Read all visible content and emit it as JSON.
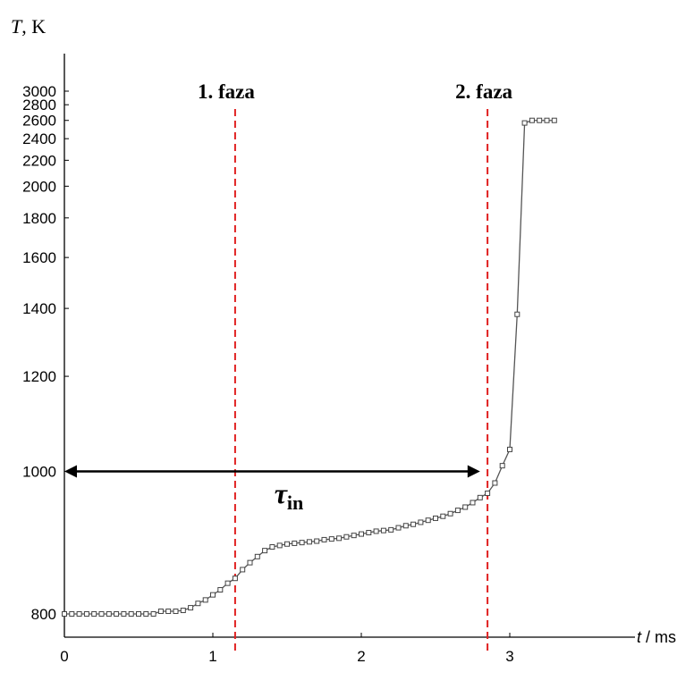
{
  "chart_data": {
    "type": "line",
    "xlabel_var": "t",
    "xlabel_unit": " / ms",
    "ylabel_var": "T",
    "ylabel_unit": ", K",
    "xlim": [
      0,
      3.7
    ],
    "x_ticks": [
      0,
      1,
      2,
      3
    ],
    "y_ticks": [
      800,
      1000,
      1200,
      1400,
      1600,
      1800,
      2000,
      2200,
      2400,
      2600,
      2800,
      3000
    ],
    "y_scale": "reciprocal",
    "grid": false,
    "series": [
      {
        "marker": "square",
        "color": "#555555",
        "x": [
          0.0,
          0.05,
          0.1,
          0.15,
          0.2,
          0.25,
          0.3,
          0.35,
          0.4,
          0.45,
          0.5,
          0.55,
          0.6,
          0.65,
          0.7,
          0.75,
          0.8,
          0.85,
          0.9,
          0.95,
          1.0,
          1.05,
          1.1,
          1.15,
          1.2,
          1.25,
          1.3,
          1.35,
          1.4,
          1.45,
          1.5,
          1.55,
          1.6,
          1.65,
          1.7,
          1.75,
          1.8,
          1.85,
          1.9,
          1.95,
          2.0,
          2.05,
          2.1,
          2.15,
          2.2,
          2.25,
          2.3,
          2.35,
          2.4,
          2.45,
          2.5,
          2.55,
          2.6,
          2.65,
          2.7,
          2.75,
          2.8,
          2.85,
          2.9,
          2.95,
          3.0,
          3.05,
          3.1,
          3.15,
          3.2,
          3.25,
          3.3
        ],
        "y": [
          800,
          800,
          800,
          800,
          800,
          800,
          800,
          800,
          800,
          800,
          800,
          800,
          800,
          803,
          803,
          803,
          804,
          807,
          812,
          816,
          822,
          828,
          836,
          842,
          853,
          862,
          870,
          878,
          883,
          885,
          887,
          888,
          889,
          890,
          891,
          893,
          894,
          895,
          897,
          899,
          901,
          903,
          905,
          906,
          907,
          910,
          913,
          915,
          918,
          921,
          924,
          927,
          931,
          936,
          941,
          948,
          956,
          963,
          980,
          1010,
          1040,
          1380,
          2570,
          2600,
          2600,
          2600,
          2600
        ]
      }
    ],
    "annotations": {
      "phase1": {
        "label": "1. faza",
        "x": 1.15
      },
      "phase2": {
        "label": "2. faza",
        "x": 2.85
      },
      "tau": {
        "symbol": "τ",
        "subscript": "in",
        "x_from": 0,
        "x_to": 2.8,
        "y": 1000
      }
    },
    "colors": {
      "phase_line": "#e02020",
      "curve": "#555555",
      "axis": "#000000"
    }
  }
}
